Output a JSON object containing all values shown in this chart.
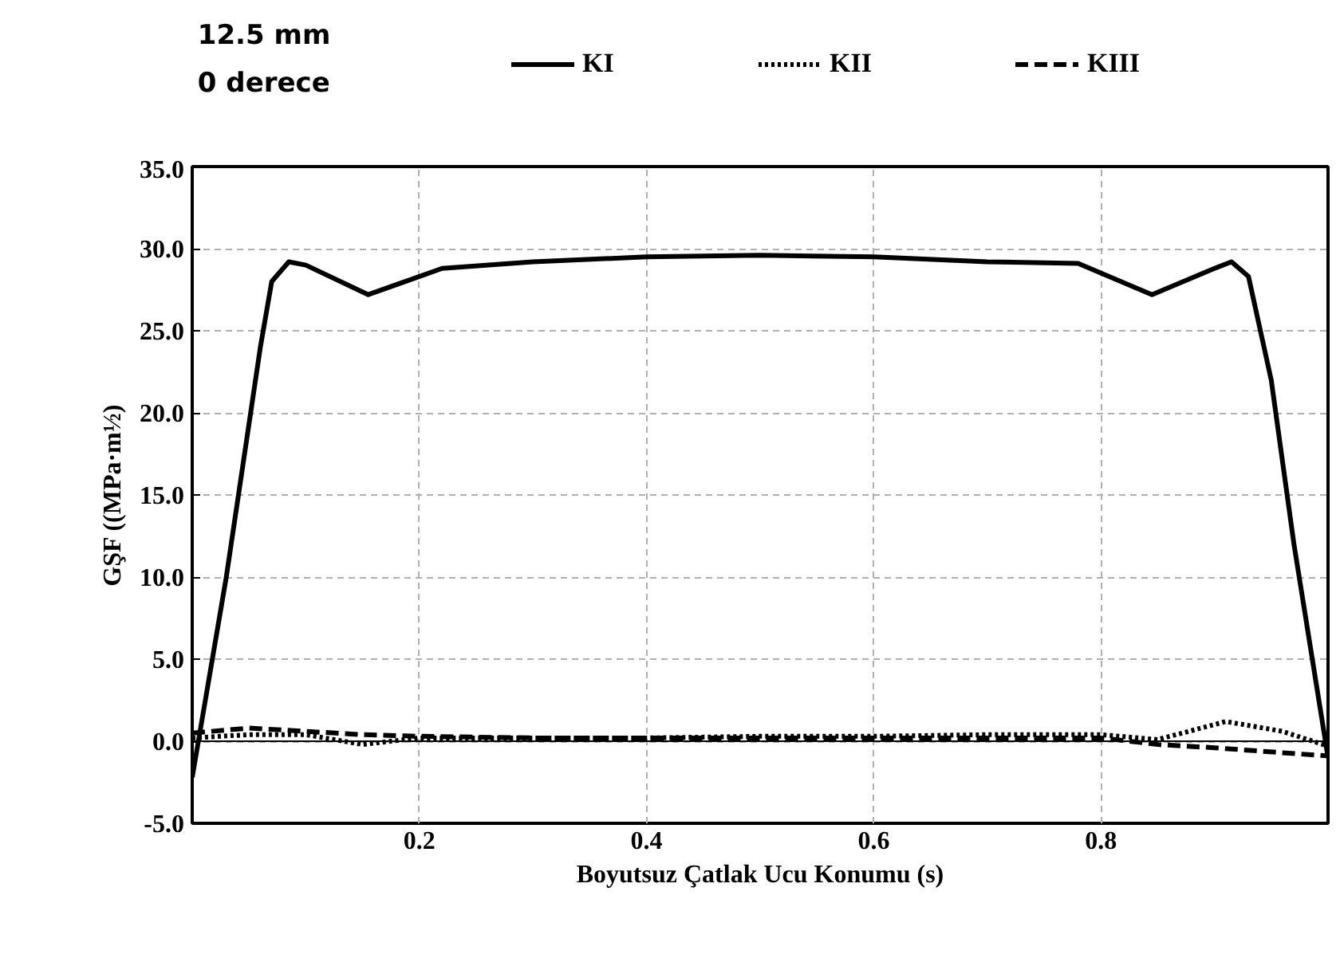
{
  "chart_data": {
    "type": "line",
    "title": "12.5 mm",
    "subtitle": "0 derece",
    "xlabel": "Boyutsuz Çatlak Ucu Konumu (s)",
    "ylabel": "GŞF ((MPa·m½)",
    "xlim": [
      0,
      1
    ],
    "xticks": [
      0.2,
      0.4,
      0.6,
      0.8
    ],
    "ylim": [
      -5,
      35
    ],
    "yticks": [
      {
        "value": -5,
        "label": "-5.0"
      },
      {
        "value": 0,
        "label": "0.0"
      },
      {
        "value": 5,
        "label": "5.0"
      },
      {
        "value": 10,
        "label": "10.0"
      },
      {
        "value": 15,
        "label": "15.0"
      },
      {
        "value": 20,
        "label": "20.0"
      },
      {
        "value": 25,
        "label": "25.0"
      },
      {
        "value": 30,
        "label": "30.0"
      },
      {
        "value": 35,
        "label": "35.0"
      }
    ],
    "grid": true,
    "legend": "top",
    "ref_lines": [
      {
        "axis": "y",
        "value": 0,
        "label": null,
        "color": "#000000"
      }
    ],
    "series": [
      {
        "name": "KI",
        "color": "#000000",
        "line_style": "solid",
        "x": [
          0,
          0.03,
          0.06,
          0.07,
          0.085,
          0.1,
          0.155,
          0.22,
          0.3,
          0.4,
          0.5,
          0.6,
          0.7,
          0.78,
          0.845,
          0.9,
          0.915,
          0.93,
          0.95,
          0.97,
          1.0
        ],
        "values": [
          -2.2,
          10,
          24,
          28,
          29.2,
          29,
          27.2,
          28.8,
          29.2,
          29.5,
          29.6,
          29.5,
          29.2,
          29.1,
          27.2,
          28.8,
          29.2,
          28.3,
          22,
          12,
          -1
        ]
      },
      {
        "name": "KII",
        "color": "#000000",
        "line_style": "dotted",
        "x": [
          0,
          0.05,
          0.1,
          0.15,
          0.2,
          0.3,
          0.4,
          0.5,
          0.6,
          0.7,
          0.8,
          0.85,
          0.91,
          0.96,
          1.0
        ],
        "values": [
          0.2,
          0.4,
          0.4,
          -0.2,
          0.2,
          0.2,
          0.2,
          0.3,
          0.3,
          0.4,
          0.4,
          0.1,
          1.2,
          0.6,
          -0.3
        ]
      },
      {
        "name": "KIII",
        "color": "#000000",
        "line_style": "dashed",
        "x": [
          0,
          0.05,
          0.1,
          0.15,
          0.2,
          0.3,
          0.4,
          0.5,
          0.6,
          0.7,
          0.8,
          0.85,
          0.9,
          1.0
        ],
        "values": [
          0.5,
          0.8,
          0.6,
          0.4,
          0.3,
          0.2,
          0.2,
          0.2,
          0.2,
          0.2,
          0.2,
          -0.2,
          -0.4,
          -0.9
        ]
      }
    ]
  }
}
